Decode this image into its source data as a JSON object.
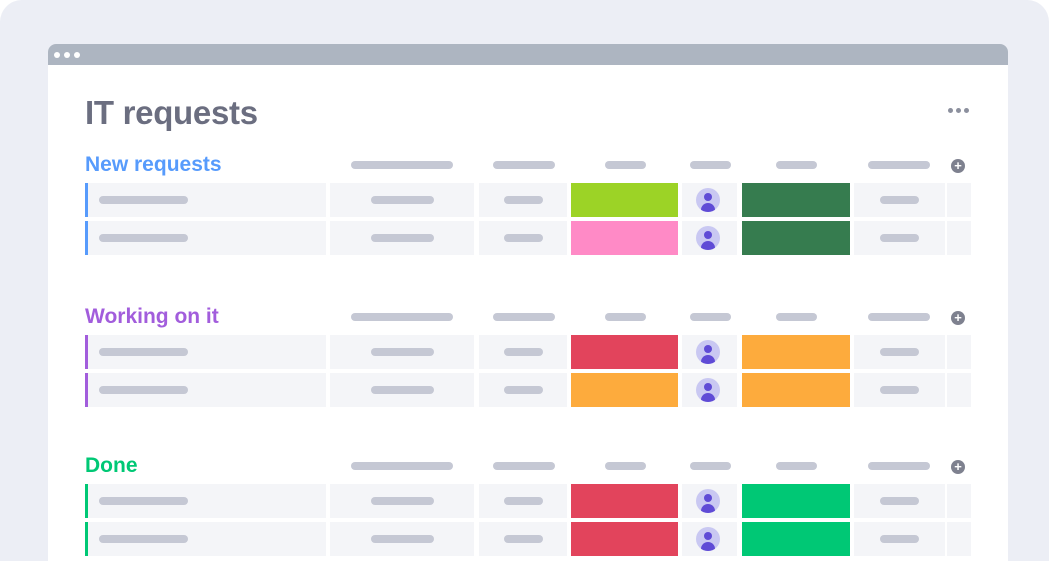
{
  "board": {
    "title": "IT requests"
  },
  "colors": {
    "blue": "#579bfc",
    "purple": "#a25ddc",
    "green": "#00c875",
    "lime": "#9cd326",
    "pink": "#ff8ac6",
    "dark_green": "#367c4f",
    "red": "#e2445c",
    "orange": "#fdab3d",
    "bright_green": "#00c875"
  },
  "icons": {
    "more": "more-horizontal-icon",
    "add_column": "plus-circle-icon",
    "person": "person-avatar-icon"
  },
  "groups": [
    {
      "title": "New requests",
      "color": "#579bfc",
      "rows": [
        {
          "status_color": "#9cd326",
          "priority_color": "#367c4f"
        },
        {
          "status_color": "#ff8ac6",
          "priority_color": "#367c4f"
        }
      ]
    },
    {
      "title": "Working on it",
      "color": "#a25ddc",
      "rows": [
        {
          "status_color": "#e2445c",
          "priority_color": "#fdab3d"
        },
        {
          "status_color": "#fdab3d",
          "priority_color": "#fdab3d"
        }
      ]
    },
    {
      "title": "Done",
      "color": "#00c875",
      "rows": [
        {
          "status_color": "#e2445c",
          "priority_color": "#00c875"
        },
        {
          "status_color": "#e2445c",
          "priority_color": "#00c875"
        }
      ]
    }
  ]
}
